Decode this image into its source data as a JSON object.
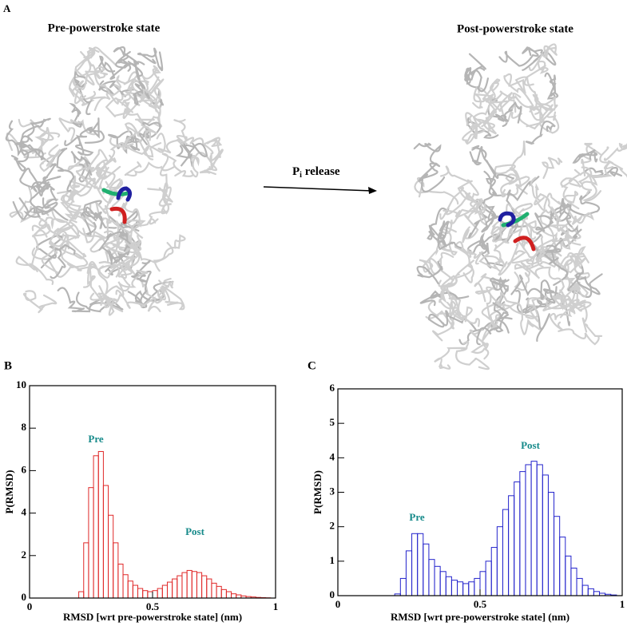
{
  "figure": {
    "panel_a": "A",
    "pre_title": "Pre-powerstroke state",
    "post_title": "Post-powerstroke state",
    "arrow_label": {
      "main": "P",
      "sub": "i",
      "rest": " release"
    }
  },
  "chart_data": [
    {
      "type": "histogram",
      "panel": "B",
      "xlabel": "RMSD [wrt pre-powerstroke state] (nm)",
      "ylabel": "P(RMSD)",
      "color": "#e02828",
      "annotations": [
        "Pre",
        "Post"
      ],
      "annotation_color": "#168a8a",
      "xlim": [
        0,
        1
      ],
      "xticks": [
        0,
        0.5,
        1
      ],
      "ylim": [
        0,
        10
      ],
      "yticks": [
        0,
        2,
        4,
        6,
        8,
        10
      ],
      "bins": [
        0.2,
        0.22,
        0.24,
        0.26,
        0.28,
        0.3,
        0.32,
        0.34,
        0.36,
        0.38,
        0.4,
        0.42,
        0.44,
        0.46,
        0.48,
        0.5,
        0.52,
        0.54,
        0.56,
        0.58,
        0.6,
        0.62,
        0.64,
        0.66,
        0.68,
        0.7,
        0.72,
        0.74,
        0.76,
        0.78,
        0.8,
        0.82,
        0.84,
        0.86,
        0.88,
        0.9,
        0.92,
        0.94,
        0.96,
        0.98
      ],
      "values": [
        0.3,
        2.6,
        5.2,
        6.7,
        6.9,
        5.3,
        3.9,
        2.6,
        1.6,
        1.1,
        0.8,
        0.6,
        0.45,
        0.35,
        0.3,
        0.35,
        0.45,
        0.6,
        0.75,
        0.9,
        1.05,
        1.2,
        1.3,
        1.25,
        1.2,
        1.05,
        0.9,
        0.7,
        0.55,
        0.4,
        0.3,
        0.2,
        0.15,
        0.1,
        0.07,
        0.05,
        0.03,
        0.02,
        0.01
      ]
    },
    {
      "type": "histogram",
      "panel": "C",
      "xlabel": "RMSD [wrt pre-powerstroke state] (nm)",
      "ylabel": "P(RMSD)",
      "color": "#2424cc",
      "annotations": [
        "Pre",
        "Post"
      ],
      "annotation_color": "#168a8a",
      "xlim": [
        0,
        1
      ],
      "xticks": [
        0,
        0.5,
        1
      ],
      "ylim": [
        0,
        6
      ],
      "yticks": [
        0,
        1,
        2,
        3,
        4,
        5,
        6
      ],
      "bins": [
        0.2,
        0.22,
        0.24,
        0.26,
        0.28,
        0.3,
        0.32,
        0.34,
        0.36,
        0.38,
        0.4,
        0.42,
        0.44,
        0.46,
        0.48,
        0.5,
        0.52,
        0.54,
        0.56,
        0.58,
        0.6,
        0.62,
        0.64,
        0.66,
        0.68,
        0.7,
        0.72,
        0.74,
        0.76,
        0.78,
        0.8,
        0.82,
        0.84,
        0.86,
        0.88,
        0.9,
        0.92,
        0.94,
        0.96,
        0.98
      ],
      "values": [
        0.05,
        0.5,
        1.3,
        1.8,
        1.8,
        1.5,
        1.05,
        0.85,
        0.7,
        0.55,
        0.45,
        0.4,
        0.35,
        0.4,
        0.5,
        0.7,
        1.0,
        1.4,
        2.0,
        2.5,
        2.9,
        3.3,
        3.6,
        3.8,
        3.9,
        3.8,
        3.5,
        3.0,
        2.3,
        1.7,
        1.15,
        0.8,
        0.5,
        0.3,
        0.2,
        0.12,
        0.07,
        0.04,
        0.02
      ]
    }
  ]
}
